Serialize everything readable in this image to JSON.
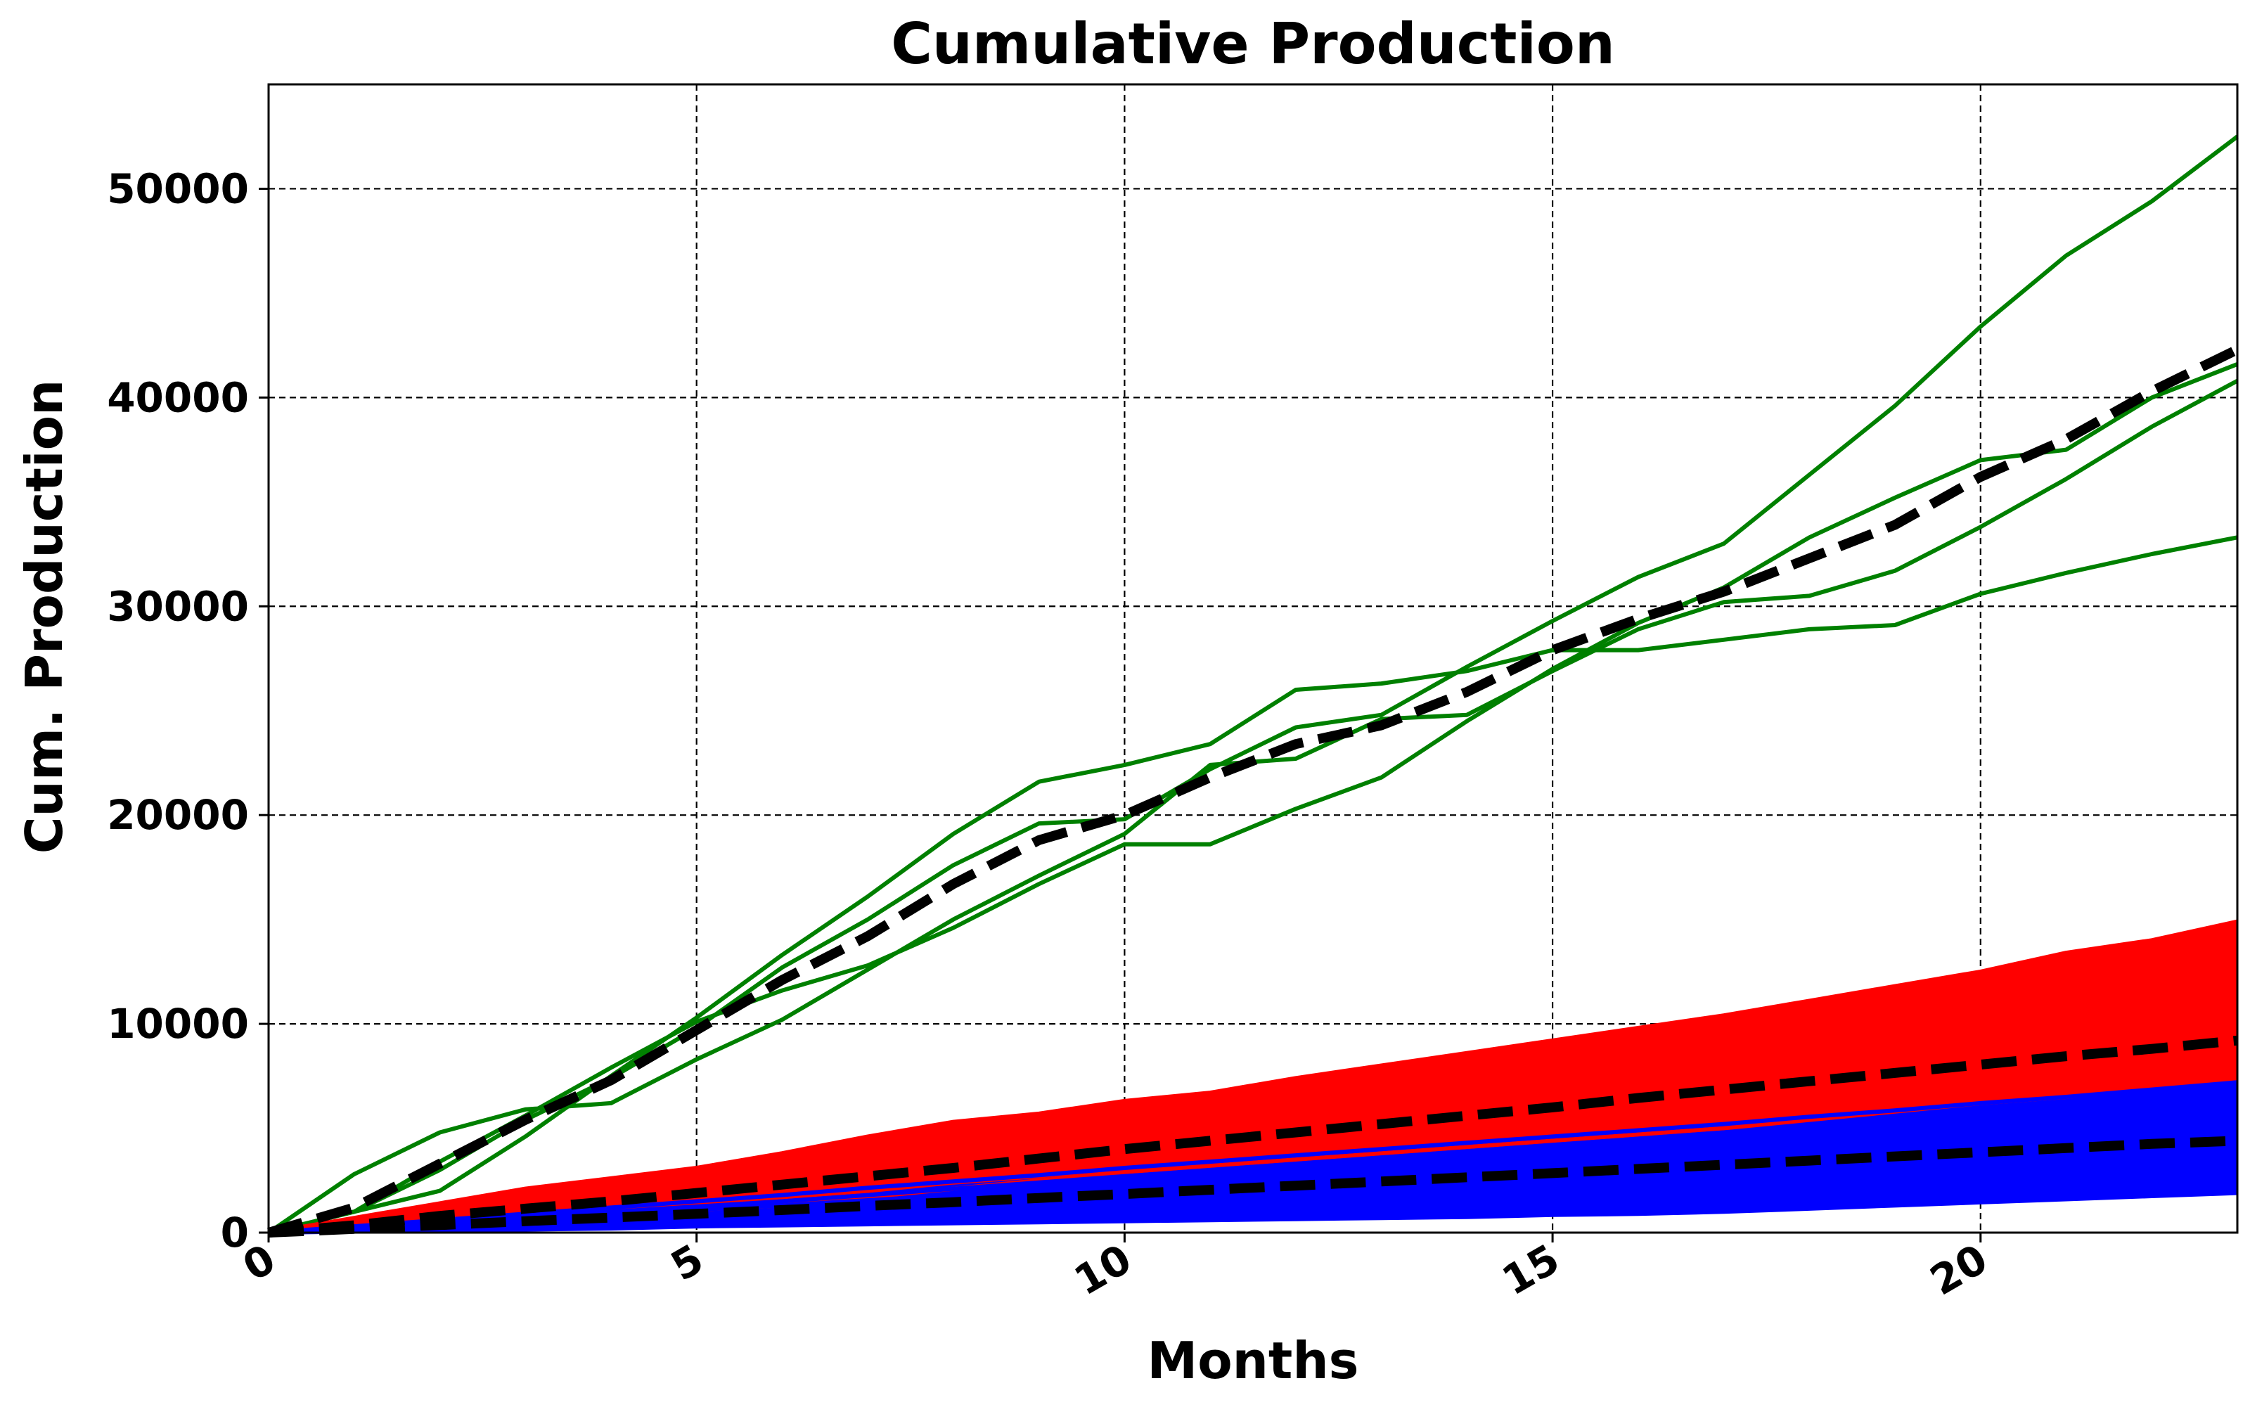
{
  "chart_data": {
    "type": "line",
    "title": "Cumulative Production",
    "xlabel": "Months",
    "ylabel": "Cum. Production",
    "xlim": [
      0,
      23
    ],
    "ylim": [
      0,
      55000
    ],
    "xticks": [
      "0",
      "5",
      "10",
      "15",
      "20"
    ],
    "yticks": [
      "0",
      "10000",
      "20000",
      "30000",
      "40000",
      "50000"
    ],
    "grid": true,
    "legend": "none",
    "x": [
      0,
      1,
      2,
      3,
      4,
      5,
      6,
      7,
      8,
      9,
      10,
      11,
      12,
      13,
      14,
      15,
      16,
      17,
      18,
      19,
      20,
      21,
      22,
      23
    ],
    "colors": {
      "green": "#008000",
      "red": "#ff0000",
      "blue": "#0000ff",
      "mean": "#000000"
    },
    "groups": [
      {
        "color": "green",
        "series": [
          [
            0,
            2800,
            4800,
            5900,
            6200,
            8300,
            10200,
            12600,
            15000,
            17100,
            19100,
            22400,
            22700,
            24600,
            24800,
            26900,
            28900,
            30200,
            30500,
            31700,
            33800,
            36100,
            38600,
            40800
          ],
          [
            0,
            1000,
            2000,
            4600,
            7500,
            10300,
            13300,
            16100,
            19100,
            21600,
            22400,
            23400,
            26000,
            26300,
            26900,
            27900,
            27900,
            28400,
            28900,
            29100,
            30600,
            31600,
            32500,
            33300
          ],
          [
            0,
            1000,
            3400,
            5600,
            7900,
            10100,
            11600,
            12800,
            14600,
            16700,
            18600,
            18600,
            20300,
            21800,
            24500,
            27000,
            29200,
            30900,
            33300,
            35200,
            37000,
            37500,
            40000,
            41600
          ],
          [
            0,
            1000,
            3000,
            5400,
            7400,
            9800,
            12700,
            15000,
            17600,
            19600,
            19800,
            22200,
            24200,
            24800,
            27100,
            29300,
            31400,
            33000,
            36300,
            39600,
            43400,
            46800,
            49400,
            52500
          ]
        ],
        "mean": [
          0,
          1200,
          3300,
          5400,
          7300,
          9700,
          12100,
          14200,
          16700,
          18800,
          20000,
          21800,
          23400,
          24300,
          25900,
          27900,
          29400,
          30700,
          32300,
          33900,
          36200,
          38000,
          40300,
          42300
        ]
      },
      {
        "color": "red",
        "band": {
          "lower": [
            0,
            150,
            300,
            500,
            700,
            1000,
            1300,
            1700,
            2100,
            2500,
            2900,
            3200,
            3500,
            3800,
            4100,
            4400,
            4700,
            5000,
            5400,
            5800,
            6200,
            6500,
            6900,
            7300
          ],
          "upper": [
            0,
            700,
            1400,
            2100,
            2600,
            3100,
            3800,
            4600,
            5300,
            5700,
            6300,
            6700,
            7400,
            8000,
            8600,
            9200,
            9800,
            10400,
            11100,
            11800,
            12500,
            13400,
            14000,
            14900
          ]
        },
        "series": [
          [
            0,
            700,
            1400,
            2100,
            2600,
            3100,
            3800,
            4600,
            5300,
            5700,
            6300,
            6700,
            7400,
            8000,
            8600,
            9200,
            9800,
            10400,
            11100,
            11800,
            12500,
            13400,
            14000,
            14900
          ],
          [
            0,
            600,
            1300,
            1900,
            2400,
            2900,
            3600,
            4300,
            4900,
            5500,
            6100,
            6500,
            7100,
            7600,
            8200,
            8800,
            9400,
            10000,
            10600,
            11400,
            12100,
            12800,
            13500,
            14400
          ],
          [
            0,
            550,
            1200,
            1800,
            2300,
            2800,
            3400,
            4100,
            4700,
            5300,
            5900,
            6200,
            6900,
            7500,
            8000,
            8500,
            9000,
            9600,
            10200,
            10900,
            11600,
            12300,
            12900,
            13800
          ],
          [
            0,
            500,
            1100,
            1600,
            2100,
            2600,
            3100,
            3700,
            4300,
            4800,
            5300,
            5700,
            6200,
            6700,
            7200,
            7700,
            8200,
            8700,
            9200,
            9800,
            10400,
            11000,
            11700,
            12500
          ],
          [
            0,
            400,
            900,
            1400,
            1800,
            2200,
            2700,
            3200,
            3700,
            4200,
            4700,
            5100,
            5600,
            6000,
            6500,
            7000,
            7500,
            8000,
            8500,
            9000,
            9600,
            10200,
            10800,
            11400
          ],
          [
            0,
            350,
            800,
            1200,
            1600,
            2000,
            2400,
            2900,
            3400,
            3800,
            4300,
            4700,
            5100,
            5500,
            6000,
            6400,
            6900,
            7400,
            7900,
            8400,
            8900,
            9400,
            10000,
            10600
          ],
          [
            0,
            300,
            700,
            1100,
            1400,
            1800,
            2200,
            2600,
            3000,
            3400,
            3800,
            4200,
            4600,
            5000,
            5400,
            5800,
            6200,
            6600,
            7100,
            7500,
            8000,
            8500,
            9000,
            9600
          ],
          [
            0,
            250,
            600,
            900,
            1200,
            1600,
            1900,
            2300,
            2700,
            3000,
            3400,
            3800,
            4100,
            4500,
            4900,
            5300,
            5700,
            6100,
            6500,
            6900,
            7300,
            7800,
            8300,
            8800
          ],
          [
            0,
            200,
            500,
            800,
            1100,
            1400,
            1700,
            2000,
            2400,
            2700,
            3100,
            3400,
            3800,
            4100,
            4500,
            4800,
            5200,
            5600,
            5900,
            6300,
            6700,
            7100,
            7600,
            8000
          ],
          [
            0,
            150,
            300,
            500,
            700,
            1000,
            1300,
            1700,
            2100,
            2500,
            2900,
            3200,
            3500,
            3800,
            4100,
            4400,
            4700,
            5000,
            5400,
            5800,
            6200,
            6500,
            6900,
            7300
          ]
        ],
        "mean": [
          0,
          350,
          800,
          1150,
          1500,
          1900,
          2300,
          2700,
          3100,
          3550,
          4000,
          4400,
          4800,
          5200,
          5600,
          6000,
          6450,
          6850,
          7250,
          7650,
          8050,
          8450,
          8800,
          9200
        ]
      },
      {
        "color": "blue",
        "band": {
          "lower": [
            0,
            50,
            100,
            150,
            200,
            300,
            350,
            400,
            450,
            500,
            550,
            600,
            650,
            700,
            750,
            850,
            900,
            1000,
            1150,
            1300,
            1450,
            1600,
            1750,
            1900
          ],
          "upper": [
            0,
            300,
            600,
            900,
            1200,
            1500,
            1800,
            2150,
            2450,
            2750,
            3100,
            3400,
            3700,
            4000,
            4300,
            4600,
            4900,
            5200,
            5550,
            5850,
            6200,
            6500,
            6850,
            7200
          ]
        },
        "series": [
          [
            0,
            300,
            600,
            900,
            1200,
            1500,
            1800,
            2150,
            2450,
            2750,
            3100,
            3400,
            3700,
            4000,
            4300,
            4600,
            4900,
            5200,
            5550,
            5850,
            6200,
            6500,
            6850,
            7200
          ],
          [
            0,
            250,
            500,
            750,
            1000,
            1250,
            1500,
            1800,
            2100,
            2400,
            2700,
            3000,
            3300,
            3600,
            3900,
            4200,
            4500,
            4800,
            5100,
            5400,
            5700,
            6000,
            6300,
            6700
          ],
          [
            0,
            200,
            400,
            650,
            850,
            1100,
            1300,
            1550,
            1800,
            2050,
            2300,
            2550,
            2800,
            3050,
            3300,
            3550,
            3800,
            4100,
            4350,
            4600,
            4900,
            5200,
            5450,
            5700
          ],
          [
            0,
            150,
            350,
            550,
            700,
            900,
            1100,
            1300,
            1500,
            1700,
            1900,
            2100,
            2300,
            2500,
            2700,
            2950,
            3150,
            3400,
            3600,
            3850,
            4100,
            4350,
            4600,
            4800
          ],
          [
            0,
            100,
            250,
            400,
            550,
            700,
            850,
            1000,
            1150,
            1300,
            1450,
            1600,
            1800,
            1950,
            2100,
            2300,
            2450,
            2650,
            2850,
            3050,
            3250,
            3450,
            3650,
            3850
          ],
          [
            0,
            80,
            180,
            300,
            400,
            500,
            600,
            700,
            800,
            900,
            1000,
            1100,
            1200,
            1300,
            1400,
            1550,
            1700,
            1850,
            2000,
            2150,
            2350,
            2550,
            2750,
            2900
          ],
          [
            0,
            50,
            100,
            150,
            200,
            300,
            350,
            400,
            450,
            500,
            550,
            600,
            650,
            700,
            750,
            850,
            900,
            1000,
            1150,
            1300,
            1450,
            1600,
            1750,
            1900
          ]
        ],
        "mean": [
          0,
          180,
          360,
          550,
          720,
          900,
          1080,
          1280,
          1460,
          1660,
          1850,
          2050,
          2250,
          2450,
          2650,
          2850,
          3050,
          3250,
          3450,
          3650,
          3850,
          4050,
          4250,
          4400
        ]
      }
    ]
  }
}
